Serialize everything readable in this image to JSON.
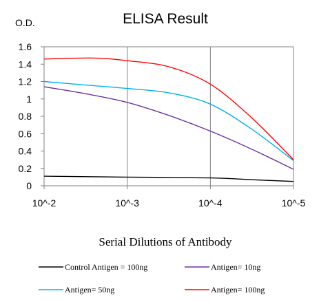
{
  "chart_data": {
    "type": "line",
    "title": "ELISA Result",
    "ylabel": "O.D.",
    "xlabel": "Serial Dilutions of Antibody",
    "categories": [
      "10^-2",
      "10^-3",
      "10^-4",
      "10^-5"
    ],
    "yticks": [
      "0",
      "0.2",
      "0.4",
      "0.6",
      "0.8",
      "1",
      "1.2",
      "1.4",
      "1.6"
    ],
    "ylim": [
      0,
      1.6
    ],
    "grid": "vertical",
    "legend_position": "bottom",
    "series": [
      {
        "name": "Control Antigen = 100ng",
        "color": "#000000",
        "points": [
          [
            0,
            0.11
          ],
          [
            1,
            0.1
          ],
          [
            2,
            0.09
          ],
          [
            2.5,
            0.07
          ],
          [
            3,
            0.05
          ]
        ]
      },
      {
        "name": "Antigen= 10ng",
        "color": "#7030A0",
        "points": [
          [
            0,
            1.14
          ],
          [
            0.5,
            1.06
          ],
          [
            1,
            0.96
          ],
          [
            1.5,
            0.81
          ],
          [
            2,
            0.63
          ],
          [
            2.5,
            0.42
          ],
          [
            3,
            0.19
          ]
        ]
      },
      {
        "name": "Antigen= 50ng",
        "color": "#00B0F0",
        "points": [
          [
            0,
            1.2
          ],
          [
            0.5,
            1.16
          ],
          [
            1,
            1.12
          ],
          [
            1.5,
            1.07
          ],
          [
            2,
            0.94
          ],
          [
            2.5,
            0.65
          ],
          [
            3,
            0.29
          ]
        ]
      },
      {
        "name": "Antigen= 100ng",
        "color": "#FF0000",
        "points": [
          [
            0,
            1.46
          ],
          [
            0.6,
            1.47
          ],
          [
            1,
            1.44
          ],
          [
            1.5,
            1.37
          ],
          [
            2,
            1.17
          ],
          [
            2.5,
            0.78
          ],
          [
            3,
            0.3
          ]
        ]
      }
    ]
  }
}
